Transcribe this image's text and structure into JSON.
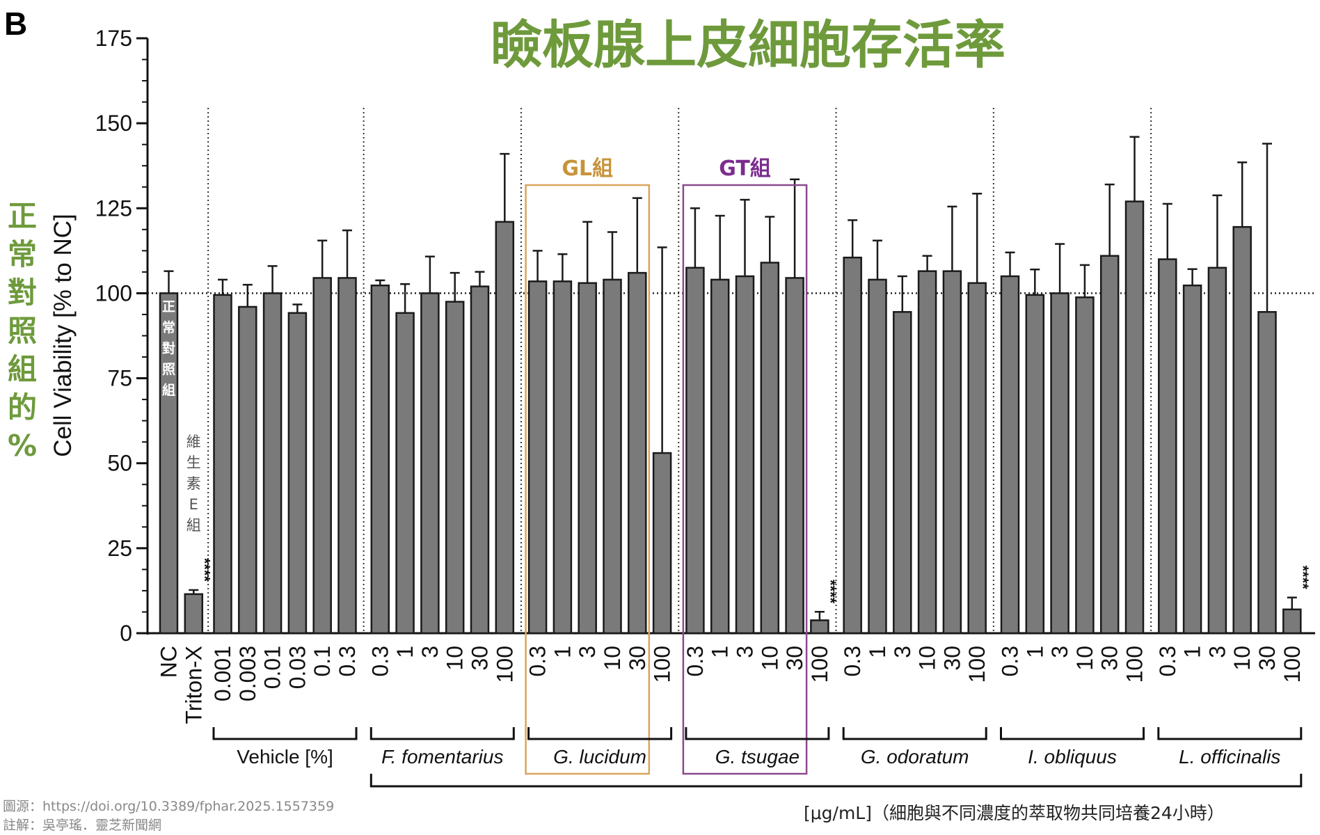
{
  "panel_letter": "B",
  "annotations": {
    "y_side_label_chars": [
      "正",
      "常",
      "對",
      "照",
      "組",
      "的",
      "%"
    ],
    "nc_inbar_chars": [
      "正",
      "常",
      "對",
      "照",
      "組"
    ],
    "vitamin_e_chars": [
      "維",
      "生",
      "素",
      "E",
      "組"
    ],
    "gl_box_label": "GL組",
    "gt_box_label": "GT組",
    "unit_note": "[μg/mL]（細胞與不同濃度的萃取物共同培養24小時）",
    "source_line": "圖源：https://doi.org/10.3389/fphar.2025.1557359",
    "note_line": "註解：吳亭瑤．靈芝新聞網",
    "significance_mark": "****"
  },
  "colors": {
    "title": "#6e9a3c",
    "bar_fill": "#7a7a7a",
    "gl_box": "#d9a45c",
    "gl_label": "#c8933a",
    "gt_box": "#8a4a8c",
    "gt_label": "#7b2d8e"
  },
  "chart_data": {
    "type": "bar",
    "title": "瞼板腺上皮細胞存活率",
    "ylabel": "Cell Viability [% to NC]",
    "ylim": [
      0,
      175
    ],
    "yticks": [
      0,
      25,
      50,
      75,
      100,
      125,
      150,
      175
    ],
    "reference_line": 100,
    "groups": [
      {
        "label": "",
        "italic": false,
        "categories": [
          "NC",
          "Triton-X"
        ],
        "values": [
          100,
          11.5
        ],
        "errors": [
          6.5,
          1.2
        ],
        "significance": [
          false,
          true
        ]
      },
      {
        "label": "Vehicle [%]",
        "italic": false,
        "categories": [
          "0.001",
          "0.003",
          "0.01",
          "0.03",
          "0.1",
          "0.3"
        ],
        "values": [
          99.5,
          96,
          100,
          94.2,
          104.5,
          104.5
        ],
        "errors": [
          4.5,
          6.5,
          8,
          2.5,
          11,
          14
        ],
        "significance": [
          false,
          false,
          false,
          false,
          false,
          false
        ]
      },
      {
        "label": "F. fomentarius",
        "italic": true,
        "categories": [
          "0.3",
          "1",
          "3",
          "10",
          "30",
          "100"
        ],
        "values": [
          102.3,
          94.2,
          100,
          97.5,
          102,
          121
        ],
        "errors": [
          1.5,
          8.5,
          10.8,
          8.5,
          4.3,
          20
        ],
        "significance": [
          false,
          false,
          false,
          false,
          false,
          false
        ]
      },
      {
        "label": "G. lucidum",
        "italic": true,
        "categories": [
          "0.3",
          "1",
          "3",
          "10",
          "30",
          "100"
        ],
        "values": [
          103.5,
          103.5,
          103,
          104,
          106,
          53
        ],
        "errors": [
          9,
          8,
          18,
          14,
          22,
          60.5
        ],
        "significance": [
          false,
          false,
          false,
          false,
          false,
          false
        ]
      },
      {
        "label": "G. tsugae",
        "italic": true,
        "categories": [
          "0.3",
          "1",
          "3",
          "10",
          "30",
          "100"
        ],
        "values": [
          107.5,
          104,
          105,
          109,
          104.5,
          3.8
        ],
        "errors": [
          17.5,
          18.8,
          22.5,
          13.5,
          29,
          2.5
        ],
        "significance": [
          false,
          false,
          false,
          false,
          false,
          true
        ]
      },
      {
        "label": "G. odoratum",
        "italic": true,
        "categories": [
          "0.3",
          "1",
          "3",
          "10",
          "30",
          "100"
        ],
        "values": [
          110.5,
          104,
          94.5,
          106.5,
          106.5,
          103
        ],
        "errors": [
          11,
          11.5,
          10.5,
          4.5,
          19,
          26.3
        ],
        "significance": [
          false,
          false,
          false,
          false,
          false,
          false
        ]
      },
      {
        "label": "I. obliquus",
        "italic": true,
        "categories": [
          "0.3",
          "1",
          "3",
          "10",
          "30",
          "100"
        ],
        "values": [
          105,
          99.5,
          100,
          98.8,
          111,
          127
        ],
        "errors": [
          7,
          7.5,
          14.5,
          9.5,
          21,
          19
        ],
        "significance": [
          false,
          false,
          false,
          false,
          false,
          false
        ]
      },
      {
        "label": "L. officinalis",
        "italic": true,
        "categories": [
          "0.3",
          "1",
          "3",
          "10",
          "30",
          "100"
        ],
        "values": [
          110,
          102.3,
          107.5,
          119.5,
          94.5,
          7
        ],
        "errors": [
          16.3,
          4.8,
          21.3,
          19,
          49.5,
          3.5
        ],
        "significance": [
          false,
          false,
          false,
          false,
          false,
          true
        ]
      }
    ],
    "highlight_boxes": [
      {
        "group_index": 3,
        "label_key": "gl_box_label"
      },
      {
        "group_index": 4,
        "label_key": "gt_box_label"
      }
    ],
    "grid": false
  }
}
